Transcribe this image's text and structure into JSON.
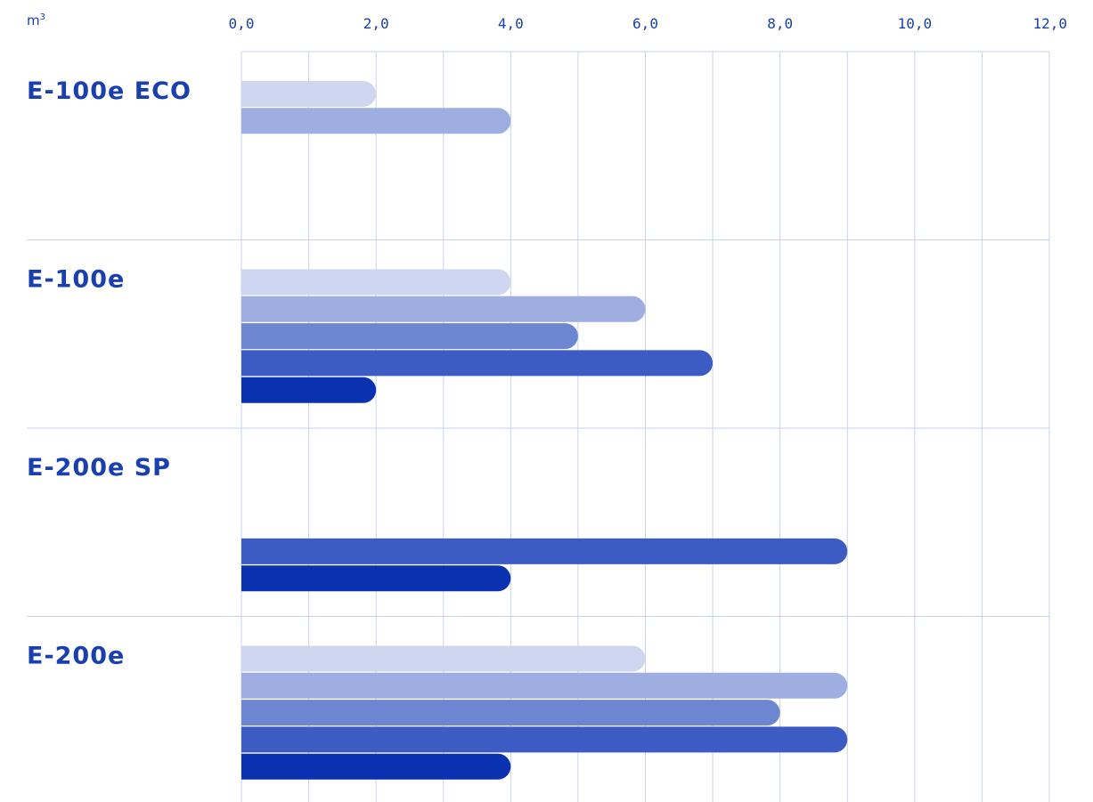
{
  "chart_data": {
    "type": "bar",
    "orientation": "horizontal",
    "unit": "m",
    "unit_superscript": "3",
    "xlim": [
      0,
      12
    ],
    "x_ticks": [
      "0,0",
      "2,0",
      "4,0",
      "6,0",
      "8,0",
      "10,0",
      "12,0"
    ],
    "grid": true,
    "legend": "none",
    "categories": [
      "E-100e ECO",
      "E-100e",
      "E-200e SP",
      "E-200e"
    ],
    "series": [
      {
        "color": "#cfd6ef",
        "values": [
          2,
          4,
          null,
          6
        ]
      },
      {
        "color": "#9eaee1",
        "values": [
          4,
          6,
          null,
          9
        ]
      },
      {
        "color": "#6d86d1",
        "values": [
          null,
          5,
          null,
          8
        ]
      },
      {
        "color": "#3d5cc3",
        "values": [
          null,
          7,
          9,
          9
        ]
      },
      {
        "color": "#0a32b0",
        "values": [
          null,
          2,
          4,
          4
        ]
      }
    ],
    "colors": {
      "text": "#1a3fae",
      "grid": "#c9d2ea"
    }
  }
}
